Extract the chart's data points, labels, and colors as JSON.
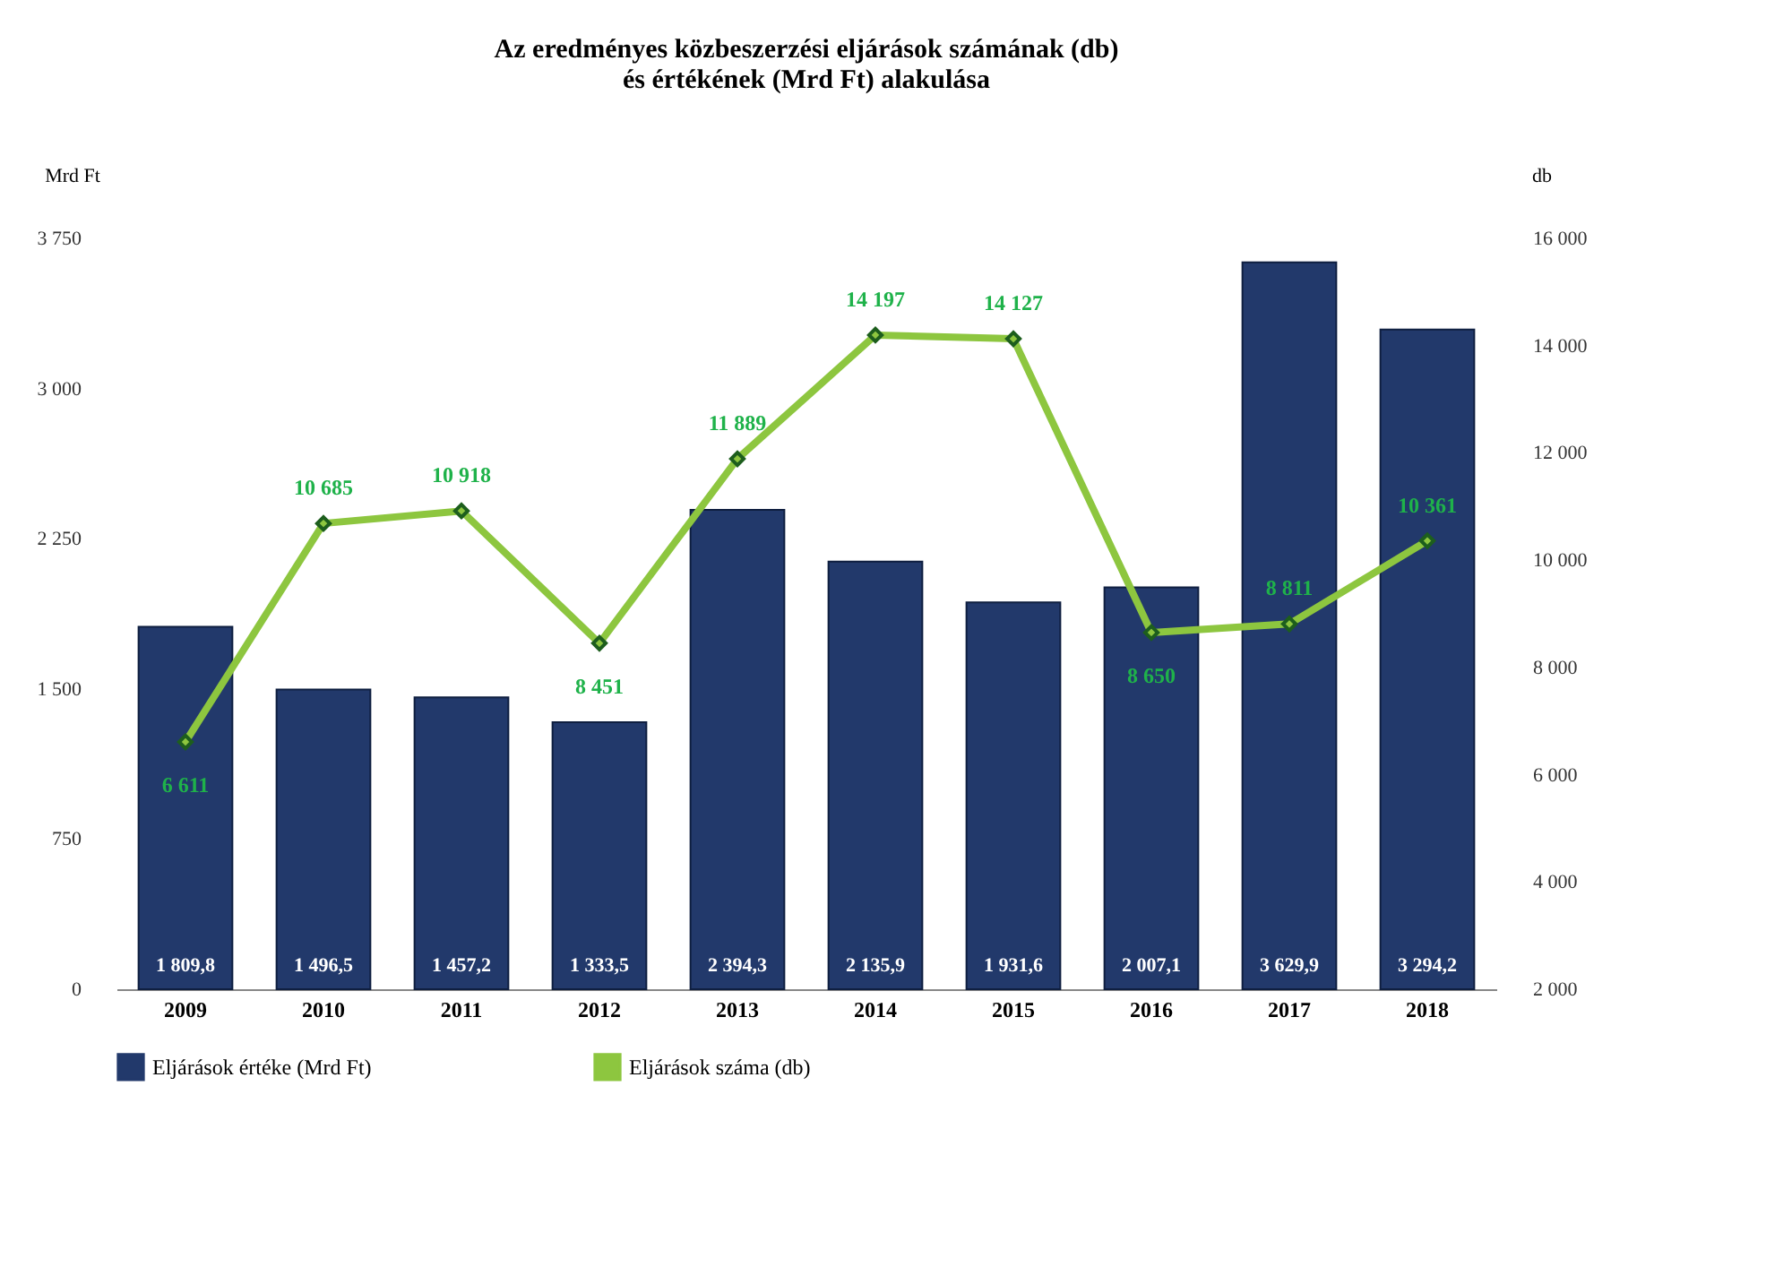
{
  "chart_data": {
    "type": "bar",
    "title": "Az eredményes közbeszerzési eljárások számának (db)\nés értékének (Mrd Ft) alakulása",
    "ylabel": "Mrd Ft",
    "y2label": "db",
    "categories": [
      "2009",
      "2010",
      "2011",
      "2012",
      "2013",
      "2014",
      "2015",
      "2016",
      "2017",
      "2018"
    ],
    "series": [
      {
        "name": "Eljárások értéke (Mrd Ft)",
        "color": "#22396b",
        "values": [
          1809.8,
          1496.5,
          1457.2,
          1333.5,
          2394.3,
          2135.9,
          1931.6,
          2007.1,
          3629.9,
          3294.2
        ],
        "value_labels": [
          "1 809,8",
          "1 496,5",
          "1 457,2",
          "1 333,5",
          "2 394,3",
          "2 135,9",
          "1 931,6",
          "2 007,1",
          "3 629,9",
          "3 294,2"
        ]
      },
      {
        "name": "Eljárások száma (db)",
        "type": "line",
        "axis": "y2",
        "color": "#8dc63f",
        "values": [
          6611,
          10685,
          10918,
          8451,
          11889,
          14197,
          14127,
          8650,
          8811,
          10361
        ],
        "value_labels": [
          "6 611",
          "10 685",
          "10 918",
          "8 451",
          "11 889",
          "14 197",
          "14 127",
          "8 650",
          "8 811",
          "10 361"
        ]
      }
    ],
    "ylim": [
      0,
      3750
    ],
    "yticks": [
      0,
      {
        "value": 750,
        "label": "750"
      },
      {
        "value": 1500,
        "label": "1 500"
      },
      {
        "value": 2250,
        "label": "2 250"
      },
      {
        "value": 3000,
        "label": "3 000"
      },
      {
        "value": 3750,
        "label": "3 750"
      }
    ],
    "y2lim": [
      2000,
      16000
    ],
    "y2ticks": [
      {
        "value": 2000,
        "label": "2 000"
      },
      {
        "value": 4000,
        "label": "4 000"
      },
      {
        "value": 6000,
        "label": "6 000"
      },
      {
        "value": 8000,
        "label": "8 000"
      },
      {
        "value": 10000,
        "label": "10 000"
      },
      {
        "value": 12000,
        "label": "12 000"
      },
      {
        "value": 14000,
        "label": "14 000"
      },
      {
        "value": 16000,
        "label": "16 000"
      }
    ],
    "marker": "diamond",
    "line_style": "solid",
    "grid": false,
    "legend": "bottom"
  }
}
